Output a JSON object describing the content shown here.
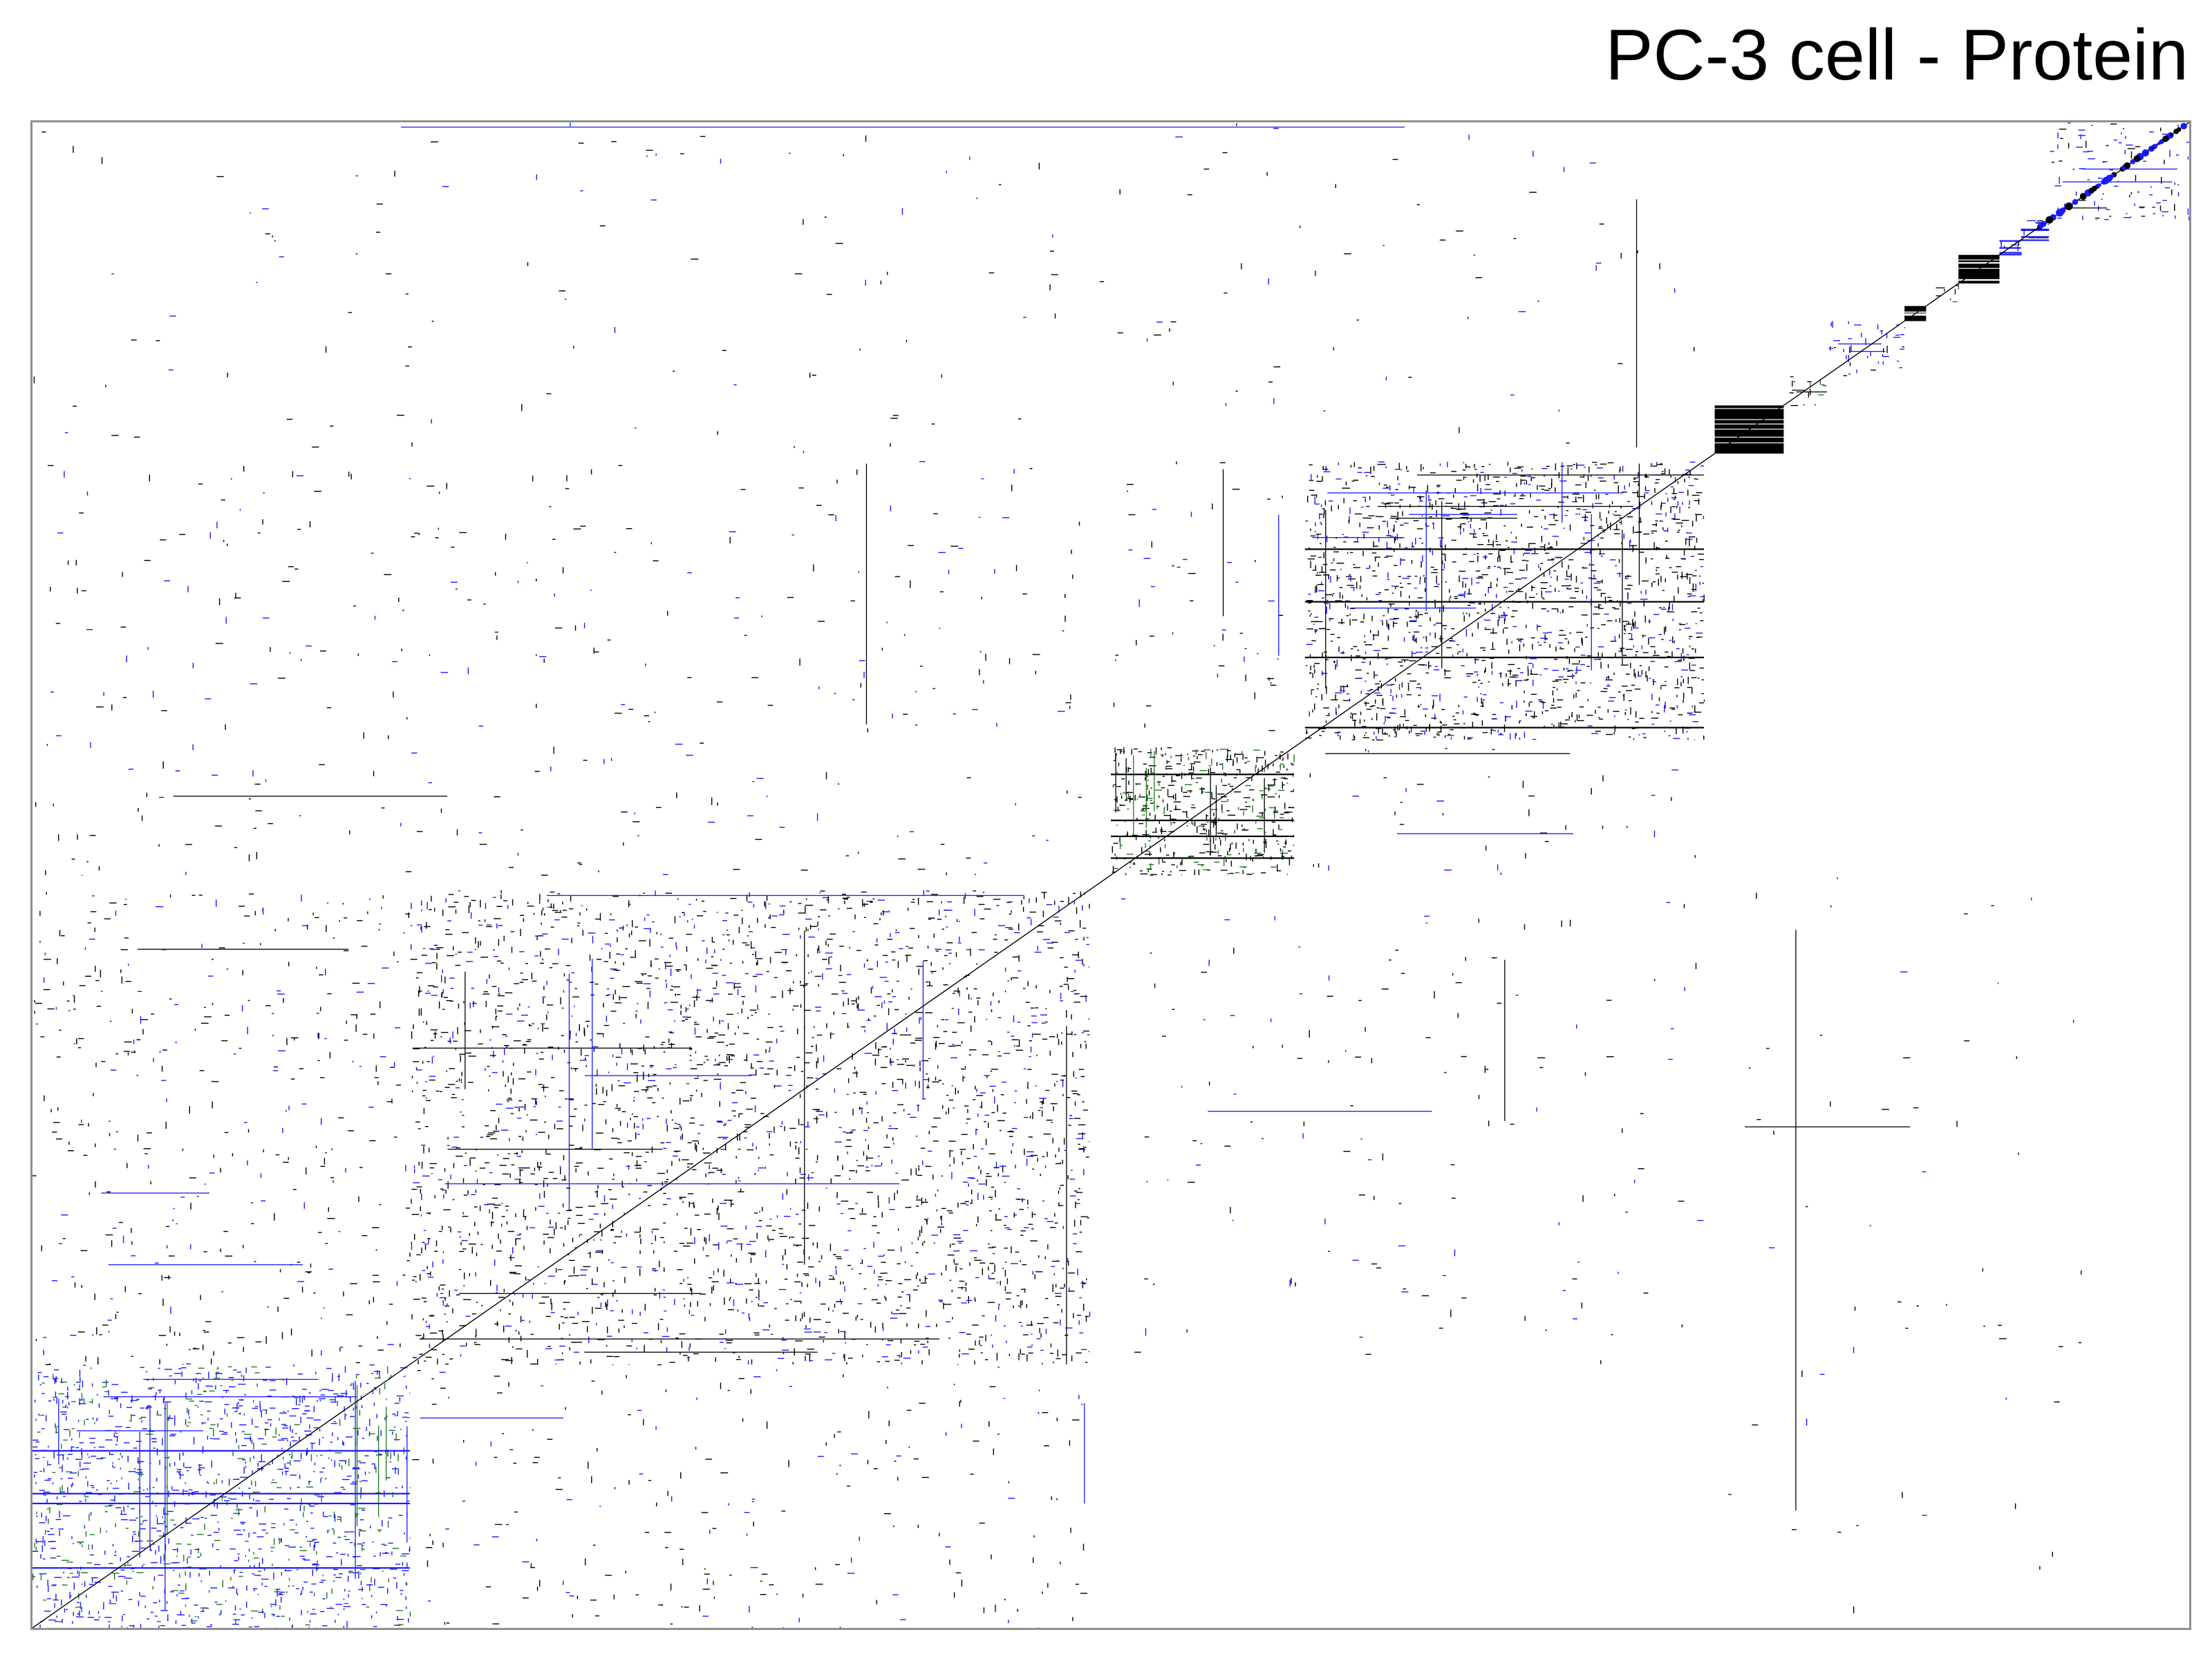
{
  "chart_data": {
    "type": "heatmap",
    "title": "PC-3 cell - Protein",
    "xlabel": "",
    "ylabel": "",
    "grid": false,
    "legend": "none",
    "axes": "none",
    "diagonal": true,
    "colors": {
      "black": "#000000",
      "blue": "#1a1aff",
      "green": "#1f7a1f",
      "frame": "#8f8f8f"
    },
    "blocks": [
      {
        "name": "B1",
        "start": 0.0,
        "end": 0.175,
        "density": 0.55,
        "color": "blue",
        "mix": "green"
      },
      {
        "name": "B2",
        "start": 0.175,
        "end": 0.49,
        "density": 0.35,
        "color": "black",
        "mix": "blue"
      },
      {
        "name": "B3",
        "start": 0.5,
        "end": 0.585,
        "density": 0.85,
        "color": "black",
        "mix": "green"
      },
      {
        "name": "B4",
        "start": 0.59,
        "end": 0.775,
        "density": 0.62,
        "color": "black",
        "mix": "blue"
      },
      {
        "name": "B5",
        "start": 0.78,
        "end": 0.812,
        "density": 0.97,
        "color": "black",
        "mix": "blue"
      },
      {
        "name": "B6",
        "start": 0.812,
        "end": 0.832,
        "density": 0.45,
        "color": "black",
        "mix": "green"
      },
      {
        "name": "B7",
        "start": 0.832,
        "end": 0.868,
        "density": 0.4,
        "color": "blue",
        "mix": "black"
      },
      {
        "name": "B8",
        "start": 0.868,
        "end": 0.878,
        "density": 0.98,
        "color": "black",
        "mix": "black"
      },
      {
        "name": "B9",
        "start": 0.88,
        "end": 0.893,
        "density": 0.4,
        "color": "black",
        "mix": "green"
      },
      {
        "name": "B10",
        "start": 0.893,
        "end": 0.912,
        "density": 0.98,
        "color": "black",
        "mix": "black"
      },
      {
        "name": "B11",
        "start": 0.912,
        "end": 0.922,
        "density": 0.85,
        "color": "blue",
        "mix": "black"
      },
      {
        "name": "B12",
        "start": 0.922,
        "end": 0.935,
        "density": 0.6,
        "color": "blue",
        "mix": "black"
      },
      {
        "name": "B13",
        "start": 0.935,
        "end": 1.0,
        "density": 0.3,
        "color": "blue",
        "mix": "black"
      }
    ],
    "off_diagonal": [
      {
        "rows": [
          0.0,
          0.175
        ],
        "cols": [
          0.175,
          0.49
        ],
        "density": 0.05
      },
      {
        "rows": [
          0.175,
          0.49
        ],
        "cols": [
          0.0,
          0.175
        ],
        "density": 0.09
      },
      {
        "rows": [
          0.175,
          0.49
        ],
        "cols": [
          0.5,
          0.775
        ],
        "density": 0.02
      },
      {
        "rows": [
          0.5,
          0.775
        ],
        "cols": [
          0.0,
          0.49
        ],
        "density": 0.03
      },
      {
        "rows": [
          0.59,
          0.775
        ],
        "cols": [
          0.5,
          0.585
        ],
        "density": 0.04
      },
      {
        "rows": [
          0.5,
          0.585
        ],
        "cols": [
          0.59,
          0.775
        ],
        "density": 0.03
      },
      {
        "rows": [
          0.78,
          1.0
        ],
        "cols": [
          0.0,
          0.775
        ],
        "density": 0.012
      },
      {
        "rows": [
          0.0,
          0.5
        ],
        "cols": [
          0.78,
          0.95
        ],
        "density": 0.008
      }
    ]
  }
}
